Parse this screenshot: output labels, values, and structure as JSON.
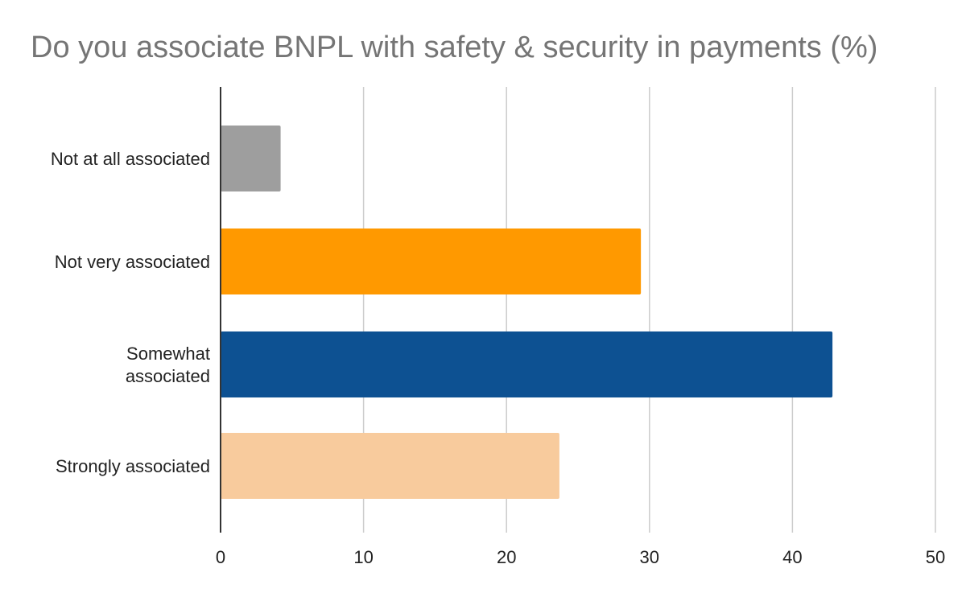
{
  "chart_data": {
    "type": "bar",
    "orientation": "horizontal",
    "title": "Do you associate BNPL with safety & security in payments (%)",
    "xlabel": "",
    "ylabel": "",
    "categories": [
      [
        "Not at all associated"
      ],
      [
        "Not very associated"
      ],
      [
        "Somewhat",
        "associated"
      ],
      [
        "Strongly associated"
      ]
    ],
    "values": [
      4.2,
      29.4,
      42.8,
      23.7
    ],
    "colors": [
      "#9e9e9e",
      "#ff9900",
      "#0d5192",
      "#f8cb9d"
    ],
    "xlim": [
      0,
      50
    ],
    "xticks": [
      0,
      10,
      20,
      30,
      40,
      50
    ],
    "grid": true,
    "legend": "none"
  }
}
